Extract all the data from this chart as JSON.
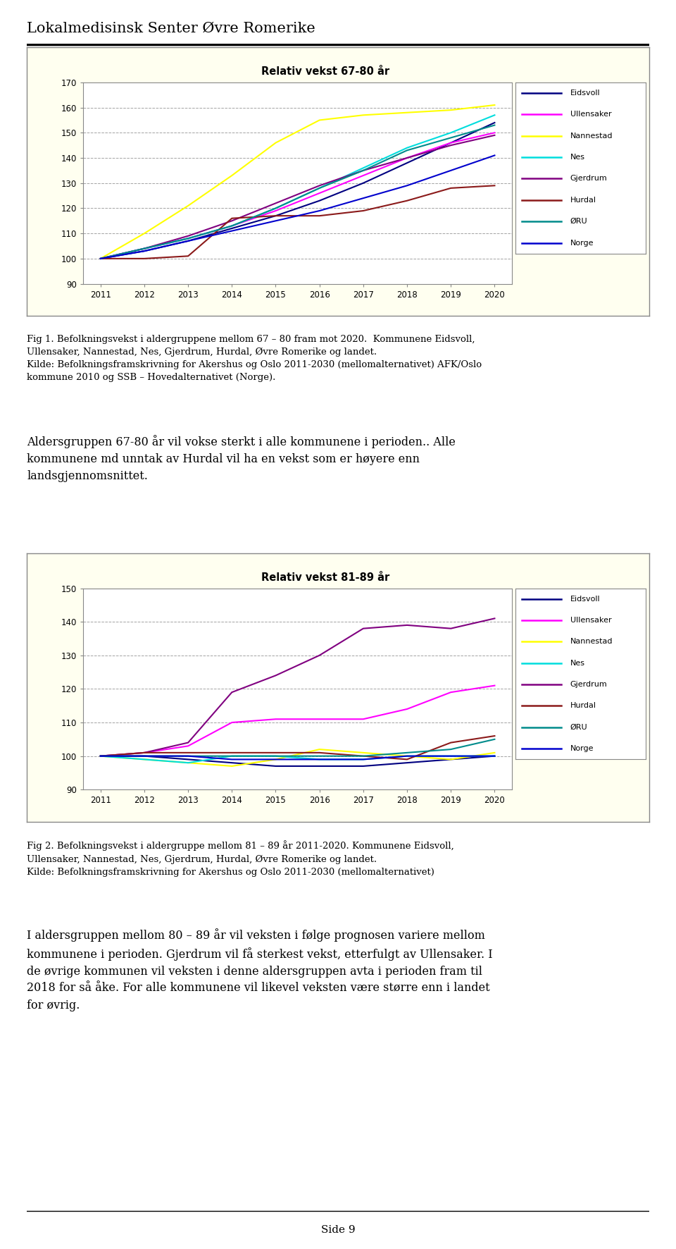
{
  "page_title": "Lokalmedisinsk Senter Øvre Romerike",
  "page_number": "Side 9",
  "chart1": {
    "title": "Relativ vekst 67-80 år",
    "ylim": [
      90,
      170
    ],
    "yticks": [
      90,
      100,
      110,
      120,
      130,
      140,
      150,
      160,
      170
    ],
    "xlim": [
      2011,
      2020
    ],
    "xticks": [
      2011,
      2012,
      2013,
      2014,
      2015,
      2016,
      2017,
      2018,
      2019,
      2020
    ],
    "series": {
      "Eidsvoll": [
        100,
        103,
        107,
        112,
        117,
        123,
        130,
        138,
        146,
        154
      ],
      "Ullensaker": [
        100,
        104,
        108,
        113,
        119,
        126,
        133,
        140,
        146,
        150
      ],
      "Nannestad": [
        100,
        110,
        121,
        133,
        146,
        155,
        157,
        158,
        159,
        161
      ],
      "Nes": [
        100,
        104,
        108,
        113,
        120,
        128,
        136,
        144,
        150,
        157
      ],
      "Gjerdrum": [
        100,
        104,
        109,
        115,
        122,
        129,
        135,
        140,
        145,
        149
      ],
      "Hurdal": [
        100,
        100,
        101,
        116,
        117,
        117,
        119,
        123,
        128,
        129
      ],
      "ØRU": [
        100,
        104,
        108,
        113,
        120,
        128,
        135,
        143,
        148,
        153
      ],
      "Norge": [
        100,
        103,
        107,
        111,
        115,
        119,
        124,
        129,
        135,
        141
      ]
    },
    "colors": {
      "Eidsvoll": "#000080",
      "Ullensaker": "#FF00FF",
      "Nannestad": "#FFFF00",
      "Nes": "#00DDDD",
      "Gjerdrum": "#800080",
      "Hurdal": "#8B1A1A",
      "ØRU": "#008B8B",
      "Norge": "#0000CD"
    }
  },
  "fig1_caption_line1": "Fig 1. Befolkningsvekst i aldergruppene mellom 67 – 80 fram mot 2020.  Kommunene Eidsvoll,",
  "fig1_caption_line2": "Ullensaker, Nannestad, Nes, Gjerdrum, Hurdal, Øvre Romerike og landet.",
  "fig1_caption_line3": "Kilde: Befolkningsframskrivning for Akershus og Oslo 2011-2030 (mellomalternativet) AFK/Oslo",
  "fig1_caption_line4": "kommune 2010 og SSB – Hovedalternativet (Norge).",
  "text1_line1": "Aldersgruppen 67-80 år vil vokse sterkt i alle kommunene i perioden.. Alle",
  "text1_line2": "kommunene md unntak av Hurdal vil ha en vekst som er høyere enn",
  "text1_line3": "landsgjennomsnittet.",
  "chart2": {
    "title": "Relativ vekst 81-89 år",
    "ylim": [
      90,
      150
    ],
    "yticks": [
      90,
      100,
      110,
      120,
      130,
      140,
      150
    ],
    "xlim": [
      2011,
      2020
    ],
    "xticks": [
      2011,
      2012,
      2013,
      2014,
      2015,
      2016,
      2017,
      2018,
      2019,
      2020
    ],
    "series": {
      "Eidsvoll": [
        100,
        100,
        99,
        98,
        97,
        97,
        97,
        98,
        99,
        100
      ],
      "Ullensaker": [
        100,
        101,
        103,
        110,
        111,
        111,
        111,
        114,
        119,
        121
      ],
      "Nannestad": [
        100,
        99,
        98,
        97,
        99,
        102,
        101,
        100,
        99,
        101
      ],
      "Nes": [
        100,
        99,
        98,
        100,
        100,
        99,
        99,
        100,
        100,
        100
      ],
      "Gjerdrum": [
        100,
        101,
        104,
        119,
        124,
        130,
        138,
        139,
        138,
        141
      ],
      "Hurdal": [
        100,
        101,
        101,
        101,
        101,
        101,
        100,
        99,
        104,
        106
      ],
      "ØRU": [
        100,
        100,
        100,
        100,
        100,
        100,
        100,
        101,
        102,
        105
      ],
      "Norge": [
        100,
        100,
        100,
        99,
        99,
        99,
        99,
        100,
        100,
        100
      ]
    },
    "colors": {
      "Eidsvoll": "#000080",
      "Ullensaker": "#FF00FF",
      "Nannestad": "#FFFF00",
      "Nes": "#00DDDD",
      "Gjerdrum": "#800080",
      "Hurdal": "#8B1A1A",
      "ØRU": "#008B8B",
      "Norge": "#0000CD"
    }
  },
  "fig2_caption_line1": "Fig 2. Befolkningsvekst i aldergruppe mellom 81 – 89 år 2011-2020. Kommunene Eidsvoll,",
  "fig2_caption_line2": "Ullensaker, Nannestad, Nes, Gjerdrum, Hurdal, Øvre Romerike og landet.",
  "fig2_caption_line3": "Kilde: Befolkningsframskrivning for Akershus og Oslo 2011-2030 (mellomalternativet)",
  "text2_line1": "I aldersgruppen mellom 80 – 89 år vil veksten i følge prognosen variere mellom",
  "text2_line2": "kommunene i perioden. Gjerdrum vil få sterkest vekst, etterfulgt av Ullensaker. I",
  "text2_line3": "de øvrige kommunen vil veksten i denne aldersgruppen avta i perioden fram til",
  "text2_line4": "2018 for så åke. For alle kommunene vil likevel veksten være større enn i landet",
  "text2_line5": "for øvrig.",
  "chart_outer_bg": "#FFFFF0",
  "chart_inner_bg": "#FFFFFF",
  "legend_names": [
    "Eidsvoll",
    "Ullensaker",
    "Nannestad",
    "Nes",
    "Gjerdrum",
    "Hurdal",
    "ØRU",
    "Norge"
  ]
}
